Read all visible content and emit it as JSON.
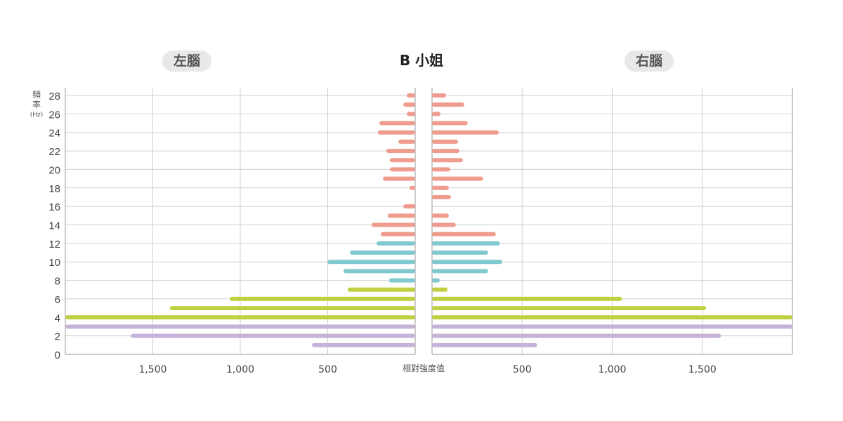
{
  "chart_data": {
    "type": "bar",
    "orientation": "horizontal-butterfly",
    "title": "B 小姐",
    "left_panel_label": "左腦",
    "right_panel_label": "右腦",
    "ylabel": "頻率",
    "ylabel_unit": "(Hz)",
    "xlabel": "相對強度值",
    "yticks": [
      0,
      2,
      4,
      6,
      8,
      10,
      12,
      14,
      16,
      18,
      20,
      22,
      24,
      26,
      28
    ],
    "xticks": [
      500,
      1000,
      1500
    ],
    "xtick_labels": [
      "500",
      "1,000",
      "1,500"
    ],
    "xlim": [
      0,
      2000
    ],
    "ylim": [
      0,
      28.5
    ],
    "grid": true,
    "frequencies": [
      1,
      2,
      3,
      4,
      5,
      6,
      7,
      8,
      9,
      10,
      11,
      12,
      13,
      14,
      15,
      16,
      17,
      18,
      19,
      20,
      21,
      22,
      23,
      24,
      25,
      26,
      27,
      28
    ],
    "left_values": [
      590,
      1626,
      2000,
      2000,
      1402,
      1060,
      386,
      149,
      410,
      502,
      373,
      221,
      197,
      249,
      157,
      68,
      0,
      32,
      185,
      145,
      145,
      165,
      96,
      213,
      205,
      48,
      68,
      48
    ],
    "right_values": [
      584,
      1603,
      2000,
      2000,
      1521,
      1054,
      86,
      43,
      311,
      389,
      311,
      377,
      354,
      132,
      93,
      0,
      105,
      93,
      284,
      101,
      171,
      152,
      144,
      370,
      198,
      47,
      179,
      78
    ],
    "bands": [
      {
        "from": 1,
        "to": 3,
        "color": "#c3b4d8"
      },
      {
        "from": 4,
        "to": 7,
        "color": "#bfd142"
      },
      {
        "from": 8,
        "to": 12,
        "color": "#80c9cf"
      },
      {
        "from": 13,
        "to": 28,
        "color": "#ef9c8e"
      }
    ]
  }
}
